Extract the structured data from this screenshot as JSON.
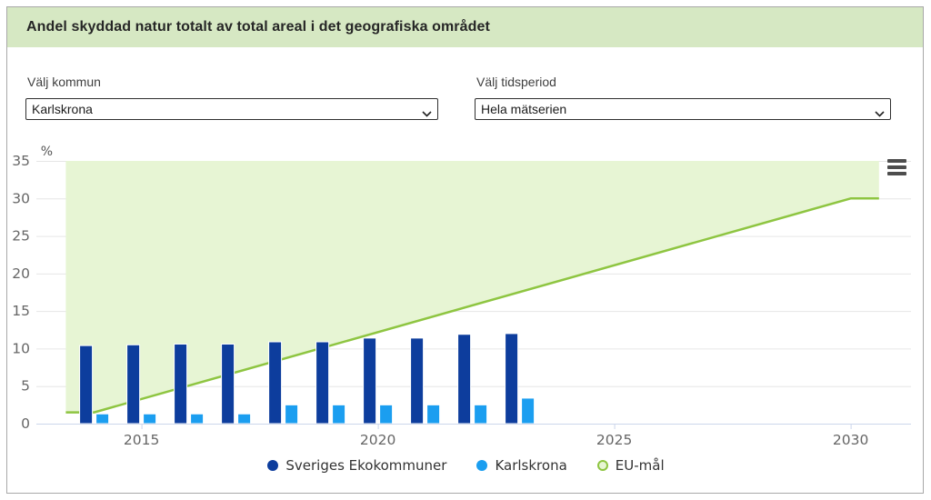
{
  "header": {
    "title": "Andel skyddad natur totalt av total areal i det geografiska området"
  },
  "filters": {
    "kommun": {
      "label": "Välj kommun",
      "selected": "Karlskrona"
    },
    "tidsperiod": {
      "label": "Välj tidsperiod",
      "selected": "Hela mätserien"
    }
  },
  "chart_data": {
    "type": "bar",
    "title": "Andel skyddad natur totalt av total areal i det geografiska området",
    "ylabel": "%",
    "xlabel": "",
    "ylim": [
      0,
      35
    ],
    "y_ticks": [
      0,
      5,
      10,
      15,
      20,
      25,
      30,
      35
    ],
    "x_ticks": [
      2015,
      2020,
      2025,
      2030
    ],
    "grid": true,
    "legend_position": "bottom",
    "categories": [
      2014,
      2015,
      2016,
      2017,
      2018,
      2019,
      2020,
      2021,
      2022,
      2023
    ],
    "series": [
      {
        "name": "Sveriges Ekokommuner",
        "type": "column",
        "color": "#0d3d9d",
        "values": [
          10.4,
          10.5,
          10.6,
          10.6,
          10.9,
          10.9,
          11.4,
          11.4,
          11.9,
          12.0
        ]
      },
      {
        "name": "Karlskrona",
        "type": "column",
        "color": "#1b9ef0",
        "values": [
          1.3,
          1.3,
          1.3,
          1.3,
          2.5,
          2.5,
          2.5,
          2.5,
          2.5,
          3.4
        ]
      },
      {
        "name": "EU-mål",
        "type": "area",
        "line_color": "#8ec541",
        "fill_color": "#e7f5d4",
        "fill_to": "top",
        "points": [
          {
            "year": 2013.4,
            "value": 1.5
          },
          {
            "year": 2014,
            "value": 1.5
          },
          {
            "year": 2030,
            "value": 30
          },
          {
            "year": 2030.6,
            "value": 30
          }
        ]
      }
    ],
    "colors": {
      "header_bg": "#d6e8c3",
      "grid_line": "#e6e6e6",
      "axis_line": "#ccd6eb",
      "tick_text": "#666666"
    }
  }
}
